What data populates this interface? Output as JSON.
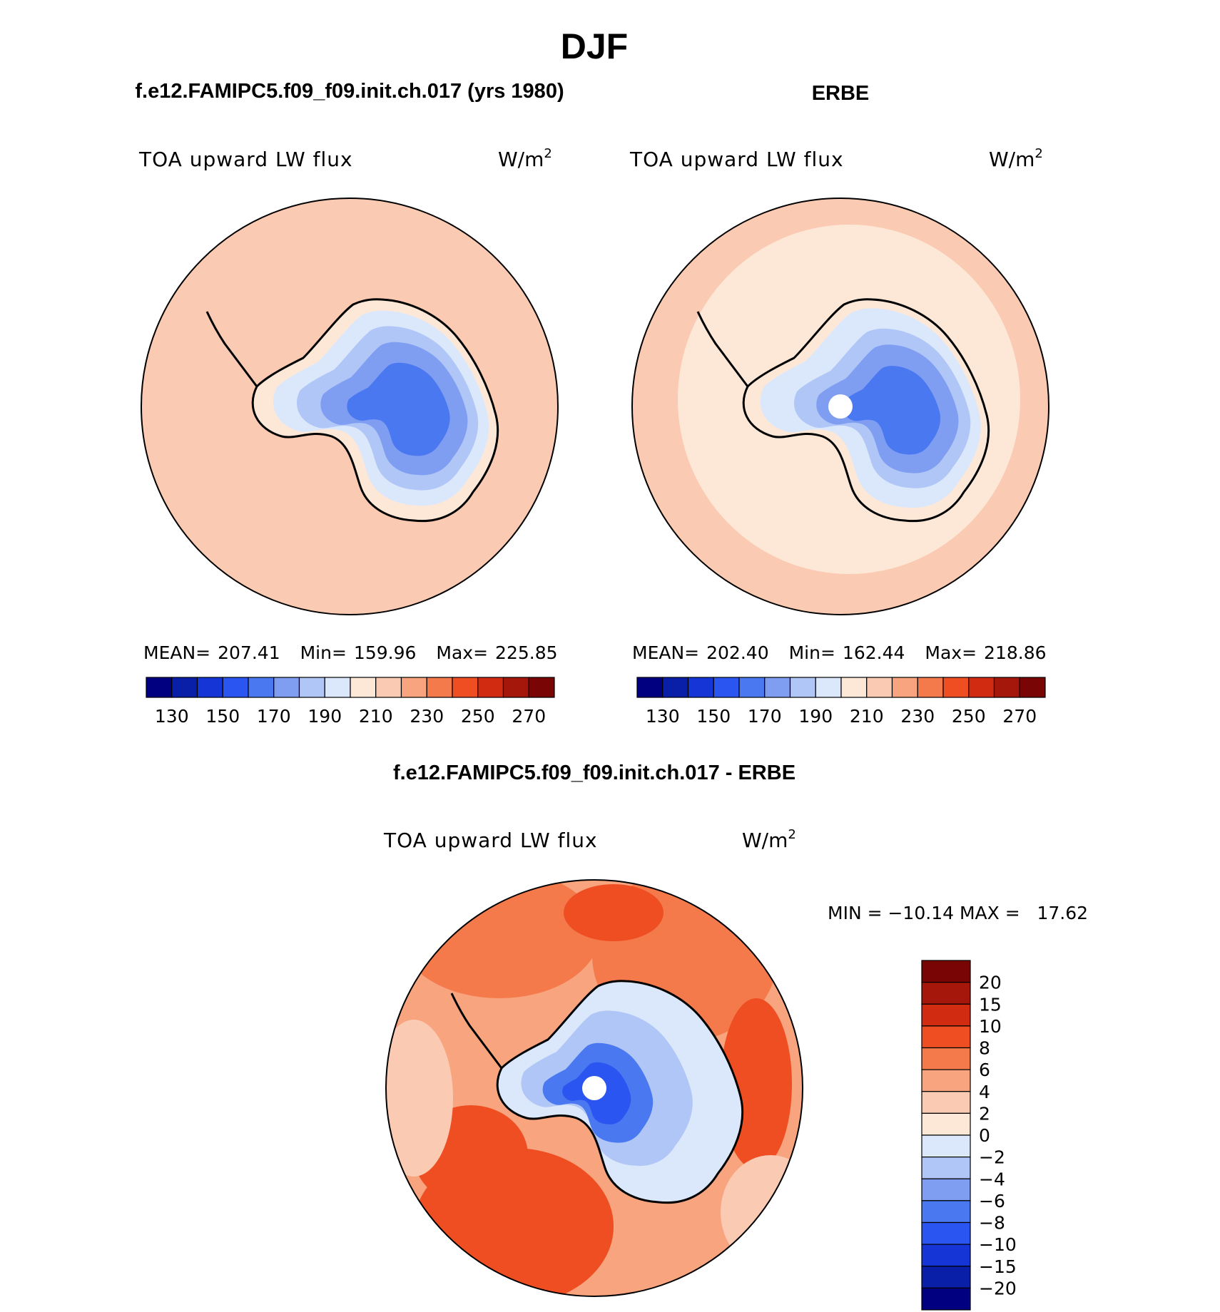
{
  "figure": {
    "title": "DJF",
    "bottom_heading": "f.e12.FAMIPC5.f09_f09.init.ch.017 - ERBE"
  },
  "panels": [
    {
      "heading": "f.e12.FAMIPC5.f09_f09.init.ch.017 (yrs 1980)",
      "variable": "TOA upward LW flux",
      "units": "W/m",
      "units_sup": "2",
      "stats": {
        "mean_label": "MEAN=",
        "mean": "207.41",
        "min_label": "Min=",
        "min": "159.96",
        "max_label": "Max=",
        "max": "225.85"
      }
    },
    {
      "heading": "ERBE",
      "variable": "TOA upward LW flux",
      "units": "W/m",
      "units_sup": "2",
      "stats": {
        "mean_label": "MEAN=",
        "mean": "202.40",
        "min_label": "Min=",
        "min": "162.44",
        "max_label": "Max=",
        "max": "218.86"
      }
    },
    {
      "variable": "TOA upward LW flux",
      "units": "W/m",
      "units_sup": "2",
      "minmax": "MIN = −10.14 MAX =   17.62"
    }
  ],
  "abs_colorbar": {
    "colors": [
      "#000080",
      "#0a1fa8",
      "#1535d6",
      "#2a55f0",
      "#4a78f0",
      "#7f9ef2",
      "#b0c6f6",
      "#dbe8fb",
      "#fde8d8",
      "#fbcab2",
      "#f8a47e",
      "#f47a4c",
      "#ee4e22",
      "#d12b12",
      "#a5170b",
      "#7a0505"
    ],
    "tick_labels": [
      "130",
      "150",
      "170",
      "190",
      "210",
      "230",
      "250",
      "270"
    ]
  },
  "diff_colorbar": {
    "colors": [
      "#7a0505",
      "#a5170b",
      "#d12b12",
      "#ee4e22",
      "#f47a4c",
      "#f8a47e",
      "#fbcab2",
      "#fde8d8",
      "#dbe8fb",
      "#b0c6f6",
      "#7f9ef2",
      "#4a78f0",
      "#2a55f0",
      "#1535d6",
      "#0a1fa8",
      "#000080"
    ],
    "tick_labels": [
      "20",
      "15",
      "10",
      "8",
      "6",
      "4",
      "2",
      "0",
      "−2",
      "−4",
      "−6",
      "−8",
      "−10",
      "−15",
      "−20"
    ]
  },
  "map_colors": {
    "ocean_model": "#fbcab2",
    "ocean_obs": "#fde8d8",
    "ocean_warm": "#f8a47e",
    "ocean_diff": "#f47a4c",
    "ocean_diff_strong": "#ee4e22",
    "ice_light": "#dbe8fb",
    "ice_mid": "#b0c6f6",
    "ice_mid2": "#7f9ef2",
    "ice_deep": "#4a78f0",
    "pole_hole": "#ffffff",
    "coast": "#000000"
  }
}
